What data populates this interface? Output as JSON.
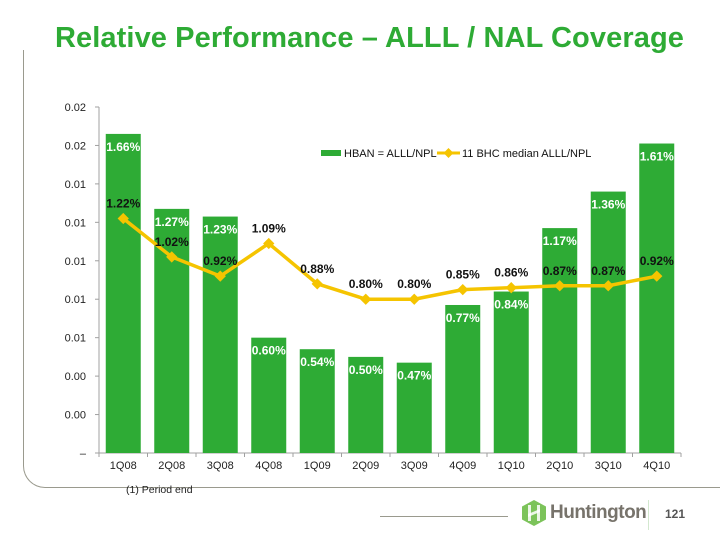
{
  "slide": {
    "title": "Relative Performance – ALLL / NAL Coverage",
    "footnote": "(1)  Period end",
    "brand": "Huntington",
    "page_number": "121"
  },
  "colors": {
    "bar": "#2eab35",
    "line": "#f5c400",
    "title": "#2eab35"
  },
  "chart_data": {
    "type": "bar",
    "categories": [
      "1Q08",
      "2Q08",
      "3Q08",
      "4Q08",
      "1Q09",
      "2Q09",
      "3Q09",
      "4Q09",
      "1Q10",
      "2Q10",
      "3Q10",
      "4Q10"
    ],
    "series": [
      {
        "name": "HBAN = ALLL/NPL",
        "type": "bar",
        "values": [
          1.66,
          1.27,
          1.23,
          0.6,
          0.54,
          0.5,
          0.47,
          0.77,
          0.84,
          1.17,
          1.36,
          1.61
        ],
        "labels": [
          "1.66%",
          "1.27%",
          "1.23%",
          "0.60%",
          "0.54%",
          "0.50%",
          "0.47%",
          "0.77%",
          "0.84%",
          "1.17%",
          "1.36%",
          "1.61%"
        ]
      },
      {
        "name": "11 BHC median ALLL/NPL",
        "type": "line",
        "values": [
          1.22,
          1.02,
          0.92,
          1.09,
          0.88,
          0.8,
          0.8,
          0.85,
          0.86,
          0.87,
          0.87,
          0.92
        ],
        "labels": [
          "1.22%",
          "1.02%",
          "0.92%",
          "1.09%",
          "0.88%",
          "0.80%",
          "0.80%",
          "0.85%",
          "0.86%",
          "0.87%",
          "0.87%",
          "0.92%"
        ]
      }
    ],
    "y_tick_labels": [
      "–",
      "0.00",
      "0.00",
      "0.01",
      "0.01",
      "0.01",
      "0.01",
      "0.01",
      "0.02",
      "0.02"
    ],
    "y_tick_values": [
      0,
      0.2,
      0.4,
      0.6,
      0.8,
      1.0,
      1.2,
      1.4,
      1.6,
      1.8
    ],
    "ylim": [
      0,
      1.8
    ],
    "xlabel": "",
    "ylabel": "",
    "legend_position": "top-right",
    "grid": false
  }
}
